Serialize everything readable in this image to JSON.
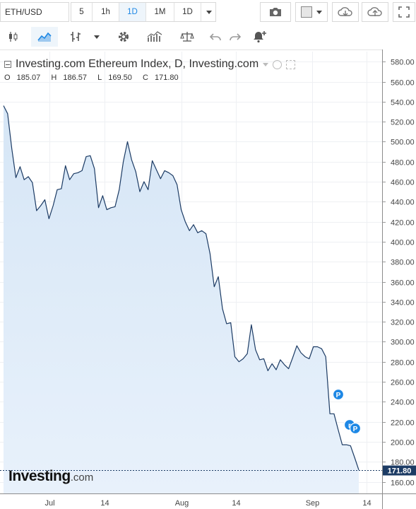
{
  "toolbar": {
    "symbol": "ETH/USD",
    "intervals": [
      "5",
      "1h",
      "1D",
      "1M",
      "1D"
    ],
    "active_interval_index": 2,
    "accent_color": "#1e88e5"
  },
  "legend": {
    "title": "Investing.com Ethereum Index, D, Investing.com",
    "open_label": "O",
    "open": "185.07",
    "high_label": "H",
    "high": "186.57",
    "low_label": "L",
    "low": "169.50",
    "close_label": "C",
    "close": "171.80"
  },
  "brand": {
    "name": "Investing",
    "suffix": ".com"
  },
  "chart_data": {
    "type": "area",
    "title": "Investing.com Ethereum Index, D, Investing.com",
    "ylim": [
      150,
      590
    ],
    "y_ticks": [
      "580.00",
      "560.00",
      "540.00",
      "520.00",
      "500.00",
      "480.00",
      "460.00",
      "440.00",
      "420.00",
      "400.00",
      "380.00",
      "360.00",
      "340.00",
      "320.00",
      "300.00",
      "280.00",
      "260.00",
      "240.00",
      "220.00",
      "200.00",
      "180.00",
      "160.00"
    ],
    "x_ticks": [
      "Jul",
      "14",
      "Aug",
      "14",
      "Sep",
      "14"
    ],
    "grid": true,
    "last_value_label": "171.80",
    "line_color": "#1c3b64",
    "fill_color": "#e8f1fb",
    "markers": [
      "P",
      "r",
      "P"
    ],
    "series": [
      {
        "values": [
          536,
          528,
          493,
          464,
          475,
          462,
          465,
          459,
          431,
          436,
          442,
          423,
          436,
          452,
          453,
          476,
          462,
          468,
          469,
          471,
          485,
          486,
          473,
          434,
          446,
          432,
          434,
          435,
          452,
          480,
          500,
          482,
          470,
          450,
          460,
          452,
          481,
          472,
          463,
          471,
          469,
          466,
          457,
          432,
          420,
          411,
          417,
          409,
          411,
          408,
          388,
          355,
          365,
          333,
          318,
          319,
          285,
          280,
          283,
          288,
          317,
          292,
          282,
          283,
          271,
          278,
          272,
          282,
          277,
          273,
          284,
          296,
          289,
          285,
          283,
          295,
          295,
          293,
          285,
          228,
          228,
          212,
          197,
          197,
          196,
          184,
          171.8
        ]
      }
    ]
  }
}
